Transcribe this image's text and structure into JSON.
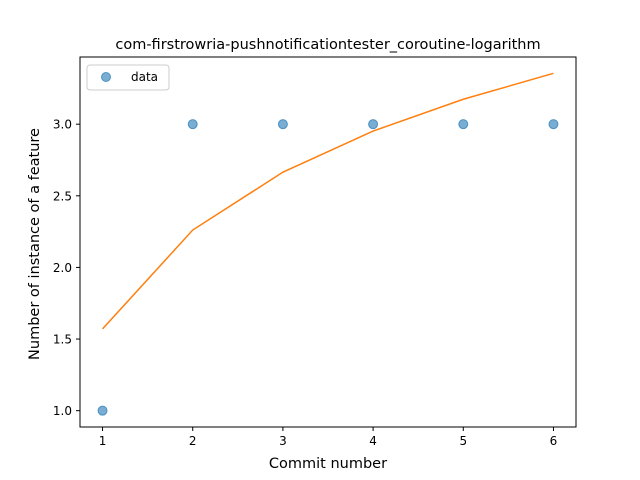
{
  "chart_data": {
    "type": "scatter",
    "title": "com-firstrowria-pushnotificationtester_coroutine-logarithm",
    "xlabel": "Commit number",
    "ylabel": "Number of instance of a feature",
    "xlim": [
      0.75,
      6.25
    ],
    "ylim": [
      0.886,
      3.469
    ],
    "xticks": [
      1,
      2,
      3,
      4,
      5,
      6
    ],
    "xtick_labels": [
      "1",
      "2",
      "3",
      "4",
      "5",
      "6"
    ],
    "yticks": [
      1.0,
      1.5,
      2.0,
      2.5,
      3.0
    ],
    "ytick_labels": [
      "1.0",
      "1.5",
      "2.0",
      "2.5",
      "3.0"
    ],
    "grid": false,
    "legend_position": "top-left",
    "series": [
      {
        "name": "data",
        "kind": "scatter",
        "color": "#1f77b4",
        "x": [
          1,
          2,
          3,
          4,
          5,
          6
        ],
        "y": [
          1.0,
          3.0,
          3.0,
          3.0,
          3.0,
          3.0
        ]
      },
      {
        "kind": "line",
        "color": "#ff7f0e",
        "x": [
          1,
          2,
          3,
          4,
          5,
          6
        ],
        "y": [
          1.571,
          2.261,
          2.665,
          2.952,
          3.174,
          3.355
        ]
      }
    ]
  }
}
